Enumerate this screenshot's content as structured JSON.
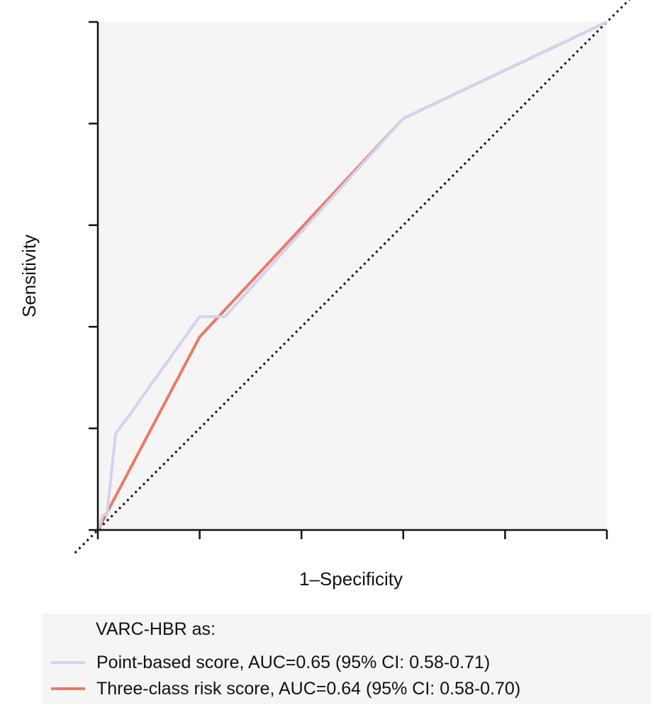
{
  "chart_data": {
    "type": "line",
    "title": "",
    "xlabel": "1–Specificity",
    "ylabel": "Sensitivity",
    "xlim": [
      0,
      1
    ],
    "ylim": [
      0,
      1
    ],
    "grid": false,
    "reference_line": "diagonal dotted",
    "legend": {
      "title": "VARC-HBR as:",
      "placement": "bottom"
    },
    "series": [
      {
        "name": "Point-based score, AUC=0.65 (95% CI: 0.58-0.71)",
        "color": "#d4d2ef",
        "x": [
          0,
          0.01,
          0.018,
          0.035,
          0.065,
          0.1,
          0.2,
          0.225,
          0.25,
          0.6,
          1.0
        ],
        "y": [
          0,
          0.03,
          0.03,
          0.19,
          0.23,
          0.28,
          0.42,
          0.42,
          0.42,
          0.81,
          1.0
        ]
      },
      {
        "name": "Three-class risk score, AUC=0.64 (95% CI: 0.58-0.70)",
        "color": "#ea7966",
        "x": [
          0,
          0.2,
          0.6,
          1.0
        ],
        "y": [
          0,
          0.38,
          0.81,
          1.0
        ]
      }
    ]
  }
}
